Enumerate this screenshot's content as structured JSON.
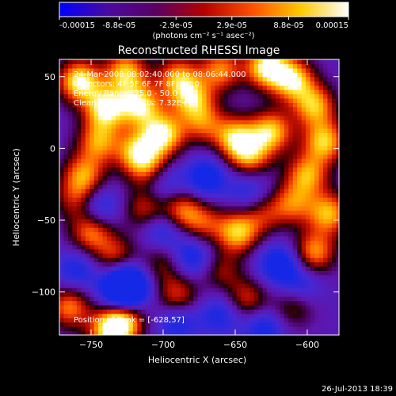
{
  "colorbar": {
    "tick_labels": [
      "-0.00015",
      "-8.8e-05",
      "-2.9e-05",
      "2.9e-05",
      "8.8e-05",
      "0.00015"
    ],
    "tick_values": [
      -0.00015,
      -8.8e-05,
      -2.9e-05,
      2.9e-05,
      8.8e-05,
      0.00015
    ],
    "unit_label": "(photons cm⁻² s⁻¹ asec⁻²)",
    "range": [
      -0.00015,
      0.00015
    ],
    "colors": [
      "#0000ff",
      "#4a0aa0",
      "#5a0064",
      "#b40000",
      "#ff5000",
      "#ffc800",
      "#ffffff"
    ]
  },
  "chart_data": {
    "type": "heatmap",
    "title": "Reconstructed RHESSI Image",
    "xlabel": "Heliocentric X (arcsec)",
    "ylabel": "Heliocentric Y (arcsec)",
    "xlim": [
      -772,
      -578
    ],
    "ylim": [
      -130,
      62
    ],
    "x_ticks": [
      -750,
      -700,
      -650,
      -600
    ],
    "y_ticks": [
      -100,
      -50,
      0,
      50
    ],
    "annotations": [
      "24-Mar-2008 08:02:40.000 to 08:06:44.000",
      "Detectors: 4F 5F 6F 7F 8F, Att 0",
      "Energy Range: 25.0 - 50.0 keV",
      "Clean    Total counts: 7.32E+03"
    ],
    "peak_label": "Position of Peak = [-628,57]",
    "peak_position": [
      -628,
      57
    ],
    "peaks": [
      {
        "x": -758,
        "y": 47,
        "v": 1.0
      },
      {
        "x": -740,
        "y": 28,
        "v": 0.95
      },
      {
        "x": -726,
        "y": 53,
        "v": 0.85
      },
      {
        "x": -716,
        "y": 30,
        "v": 0.9
      },
      {
        "x": -700,
        "y": 10,
        "v": 0.95
      },
      {
        "x": -690,
        "y": 50,
        "v": 0.7
      },
      {
        "x": -718,
        "y": -2,
        "v": 0.8
      },
      {
        "x": -745,
        "y": 5,
        "v": 0.7
      },
      {
        "x": -755,
        "y": -18,
        "v": 0.7
      },
      {
        "x": -710,
        "y": -15,
        "v": 0.55
      },
      {
        "x": -680,
        "y": 35,
        "v": 0.75
      },
      {
        "x": -660,
        "y": 55,
        "v": 0.7
      },
      {
        "x": -628,
        "y": 57,
        "v": 1.0
      },
      {
        "x": -610,
        "y": 48,
        "v": 0.9
      },
      {
        "x": -595,
        "y": 30,
        "v": 0.8
      },
      {
        "x": -625,
        "y": 12,
        "v": 0.85
      },
      {
        "x": -650,
        "y": 8,
        "v": 0.8
      },
      {
        "x": -640,
        "y": -5,
        "v": 0.7
      },
      {
        "x": -588,
        "y": 5,
        "v": 0.85
      },
      {
        "x": -600,
        "y": -18,
        "v": 0.75
      },
      {
        "x": -585,
        "y": -45,
        "v": 0.8
      },
      {
        "x": -595,
        "y": -72,
        "v": 0.75
      },
      {
        "x": -610,
        "y": -38,
        "v": 0.6
      },
      {
        "x": -630,
        "y": -45,
        "v": 0.45
      },
      {
        "x": -688,
        "y": -43,
        "v": 0.7
      },
      {
        "x": -712,
        "y": -42,
        "v": 0.55
      },
      {
        "x": -750,
        "y": -58,
        "v": 0.7
      },
      {
        "x": -733,
        "y": -75,
        "v": 0.55
      },
      {
        "x": -648,
        "y": -58,
        "v": 0.85
      },
      {
        "x": -672,
        "y": -52,
        "v": 0.5
      },
      {
        "x": -765,
        "y": -110,
        "v": 0.7
      },
      {
        "x": -728,
        "y": -120,
        "v": 0.9
      },
      {
        "x": -738,
        "y": -128,
        "v": 0.75
      },
      {
        "x": -690,
        "y": -103,
        "v": 0.6
      },
      {
        "x": -642,
        "y": -105,
        "v": 0.55
      },
      {
        "x": -610,
        "y": -110,
        "v": 0.45
      },
      {
        "x": -660,
        "y": -85,
        "v": 0.4
      },
      {
        "x": -700,
        "y": -80,
        "v": 0.4
      },
      {
        "x": -760,
        "y": -35,
        "v": 0.5
      },
      {
        "x": -672,
        "y": 18,
        "v": 0.55
      },
      {
        "x": -670,
        "y": -20,
        "v": -0.6
      },
      {
        "x": -700,
        "y": -55,
        "v": -0.5
      },
      {
        "x": -725,
        "y": -95,
        "v": -0.75
      },
      {
        "x": -728,
        "y": -98,
        "v": -0.8
      },
      {
        "x": -680,
        "y": -75,
        "v": -0.55
      },
      {
        "x": -690,
        "y": -120,
        "v": -0.5
      },
      {
        "x": -660,
        "y": -115,
        "v": -0.45
      },
      {
        "x": -620,
        "y": -80,
        "v": -0.6
      },
      {
        "x": -640,
        "y": -30,
        "v": -0.4
      },
      {
        "x": -745,
        "y": -40,
        "v": -0.5
      },
      {
        "x": -700,
        "y": -25,
        "v": -0.45
      },
      {
        "x": -630,
        "y": -125,
        "v": -0.5
      },
      {
        "x": -605,
        "y": -95,
        "v": -0.4
      },
      {
        "x": -760,
        "y": -85,
        "v": -0.45
      }
    ]
  },
  "footer": {
    "timestamp": "26-Jul-2013 18:39"
  }
}
